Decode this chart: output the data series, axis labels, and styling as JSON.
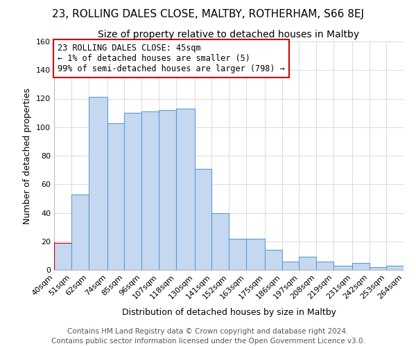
{
  "title": "23, ROLLING DALES CLOSE, MALTBY, ROTHERHAM, S66 8EJ",
  "subtitle": "Size of property relative to detached houses in Maltby",
  "xlabel": "Distribution of detached houses by size in Maltby",
  "ylabel": "Number of detached properties",
  "bar_values": [
    19,
    53,
    121,
    103,
    110,
    111,
    112,
    113,
    71,
    40,
    22,
    22,
    14,
    6,
    9,
    6,
    3,
    5,
    2,
    3
  ],
  "bin_edges": [
    40,
    51,
    62,
    74,
    85,
    96,
    107,
    118,
    130,
    141,
    152,
    163,
    175,
    186,
    197,
    208,
    219,
    231,
    242,
    253,
    264
  ],
  "bar_color": "#c5d8f0",
  "bar_edge_color": "#5b9bd5",
  "highlight_edge_color": "#cc0000",
  "annotation_text": "23 ROLLING DALES CLOSE: 45sqm\n← 1% of detached houses are smaller (5)\n99% of semi-detached houses are larger (798) →",
  "annotation_box_edge_color": "#cc0000",
  "ylim": [
    0,
    160
  ],
  "yticks": [
    0,
    20,
    40,
    60,
    80,
    100,
    120,
    140,
    160
  ],
  "footer_line1": "Contains HM Land Registry data © Crown copyright and database right 2024.",
  "footer_line2": "Contains public sector information licensed under the Open Government Licence v3.0.",
  "background_color": "#ffffff",
  "grid_color": "#cccccc",
  "title_fontsize": 11,
  "subtitle_fontsize": 10,
  "axis_label_fontsize": 9,
  "tick_fontsize": 8,
  "annotation_fontsize": 8.5,
  "footer_fontsize": 7.5
}
